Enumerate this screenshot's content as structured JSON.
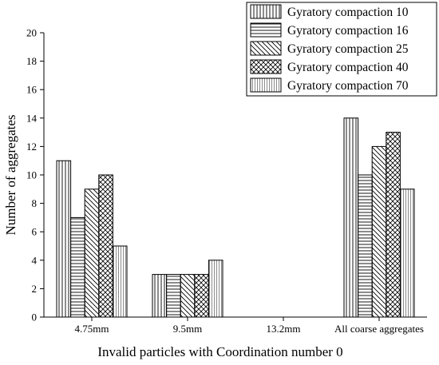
{
  "chart_data": {
    "type": "bar",
    "title": "",
    "xlabel": "Invalid particles with Coordination number 0",
    "ylabel": "Number of aggregates",
    "ylim": [
      0,
      20
    ],
    "yticks": [
      0,
      2,
      4,
      6,
      8,
      10,
      12,
      14,
      16,
      18,
      20
    ],
    "categories": [
      "4.75mm",
      "9.5mm",
      "13.2mm",
      "All coarse aggregates"
    ],
    "series": [
      {
        "name": "Gyratory compaction 10",
        "values": [
          11,
          3,
          0,
          14
        ],
        "pattern": "vertical-lines"
      },
      {
        "name": "Gyratory compaction 16",
        "values": [
          7,
          3,
          0,
          10
        ],
        "pattern": "horizontal-lines"
      },
      {
        "name": "Gyratory compaction 25",
        "values": [
          9,
          3,
          0,
          12
        ],
        "pattern": "diagonal-lines"
      },
      {
        "name": "Gyratory compaction 40",
        "values": [
          10,
          3,
          0,
          13
        ],
        "pattern": "crosshatch"
      },
      {
        "name": "Gyratory compaction 70",
        "values": [
          5,
          4,
          0,
          9
        ],
        "pattern": "fine-vertical-lines"
      }
    ],
    "legend_position": "top-right",
    "grid": false,
    "bar_fill": "#ffffff",
    "bar_stroke": "#000000"
  }
}
